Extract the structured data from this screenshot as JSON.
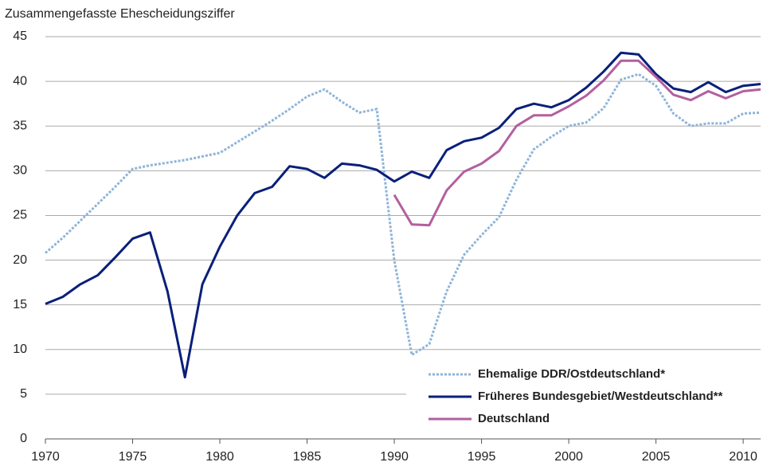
{
  "chart_data": {
    "type": "line",
    "y_label": "Zusammengefasste Ehescheidungsziffer",
    "x": [
      1970,
      1971,
      1972,
      1973,
      1974,
      1975,
      1976,
      1977,
      1978,
      1979,
      1980,
      1981,
      1982,
      1983,
      1984,
      1985,
      1986,
      1987,
      1988,
      1989,
      1990,
      1991,
      1992,
      1993,
      1994,
      1995,
      1996,
      1997,
      1998,
      1999,
      2000,
      2001,
      2002,
      2003,
      2004,
      2005,
      2006,
      2007,
      2008,
      2009,
      2010,
      2011
    ],
    "series": [
      {
        "name": "Ehemalige DDR/Ostdeutschland*",
        "color": "#8fb4d9",
        "style": "dotted",
        "values": [
          20.8,
          22.5,
          24.4,
          26.3,
          28.2,
          30.2,
          30.6,
          30.9,
          31.2,
          31.6,
          32.0,
          33.2,
          34.4,
          35.6,
          36.9,
          38.3,
          39.1,
          37.7,
          36.5,
          36.9,
          20.0,
          9.4,
          10.6,
          16.5,
          20.6,
          22.8,
          24.8,
          29.0,
          32.4,
          33.8,
          35.0,
          35.4,
          37.0,
          40.2,
          40.8,
          39.5,
          36.4,
          35.0,
          35.3,
          35.3,
          36.4,
          36.5
        ]
      },
      {
        "name": "Früheres Bundesgebiet/Westdeutschland**",
        "color": "#0a1f7a",
        "style": "solid",
        "values": [
          15.1,
          15.9,
          17.3,
          18.3,
          20.3,
          22.4,
          23.1,
          16.5,
          6.9,
          17.3,
          21.5,
          25.0,
          27.5,
          28.2,
          30.5,
          30.2,
          29.2,
          30.8,
          30.6,
          30.1,
          28.8,
          29.9,
          29.2,
          32.3,
          33.3,
          33.7,
          34.8,
          36.9,
          37.5,
          37.1,
          37.9,
          39.3,
          41.1,
          43.2,
          43.0,
          40.8,
          39.2,
          38.8,
          39.9,
          38.8,
          39.5,
          39.7
        ]
      },
      {
        "name": "Deutschland",
        "color": "#b35f9f",
        "style": "solid",
        "values": [
          null,
          null,
          null,
          null,
          null,
          null,
          null,
          null,
          null,
          null,
          null,
          null,
          null,
          null,
          null,
          null,
          null,
          null,
          null,
          null,
          27.3,
          24.0,
          23.9,
          27.8,
          29.9,
          30.8,
          32.2,
          35.0,
          36.2,
          36.2,
          37.2,
          38.4,
          40.1,
          42.3,
          42.3,
          40.5,
          38.5,
          37.9,
          38.9,
          38.1,
          38.9,
          39.1
        ]
      }
    ],
    "xlim": [
      1970,
      2011
    ],
    "xticks": [
      1970,
      1975,
      1980,
      1985,
      1990,
      1995,
      2000,
      2005,
      2010
    ],
    "ylim": [
      0,
      45
    ],
    "yticks": [
      0,
      5,
      10,
      15,
      20,
      25,
      30,
      35,
      40,
      45
    ],
    "grid": true,
    "legend": "lower right"
  }
}
